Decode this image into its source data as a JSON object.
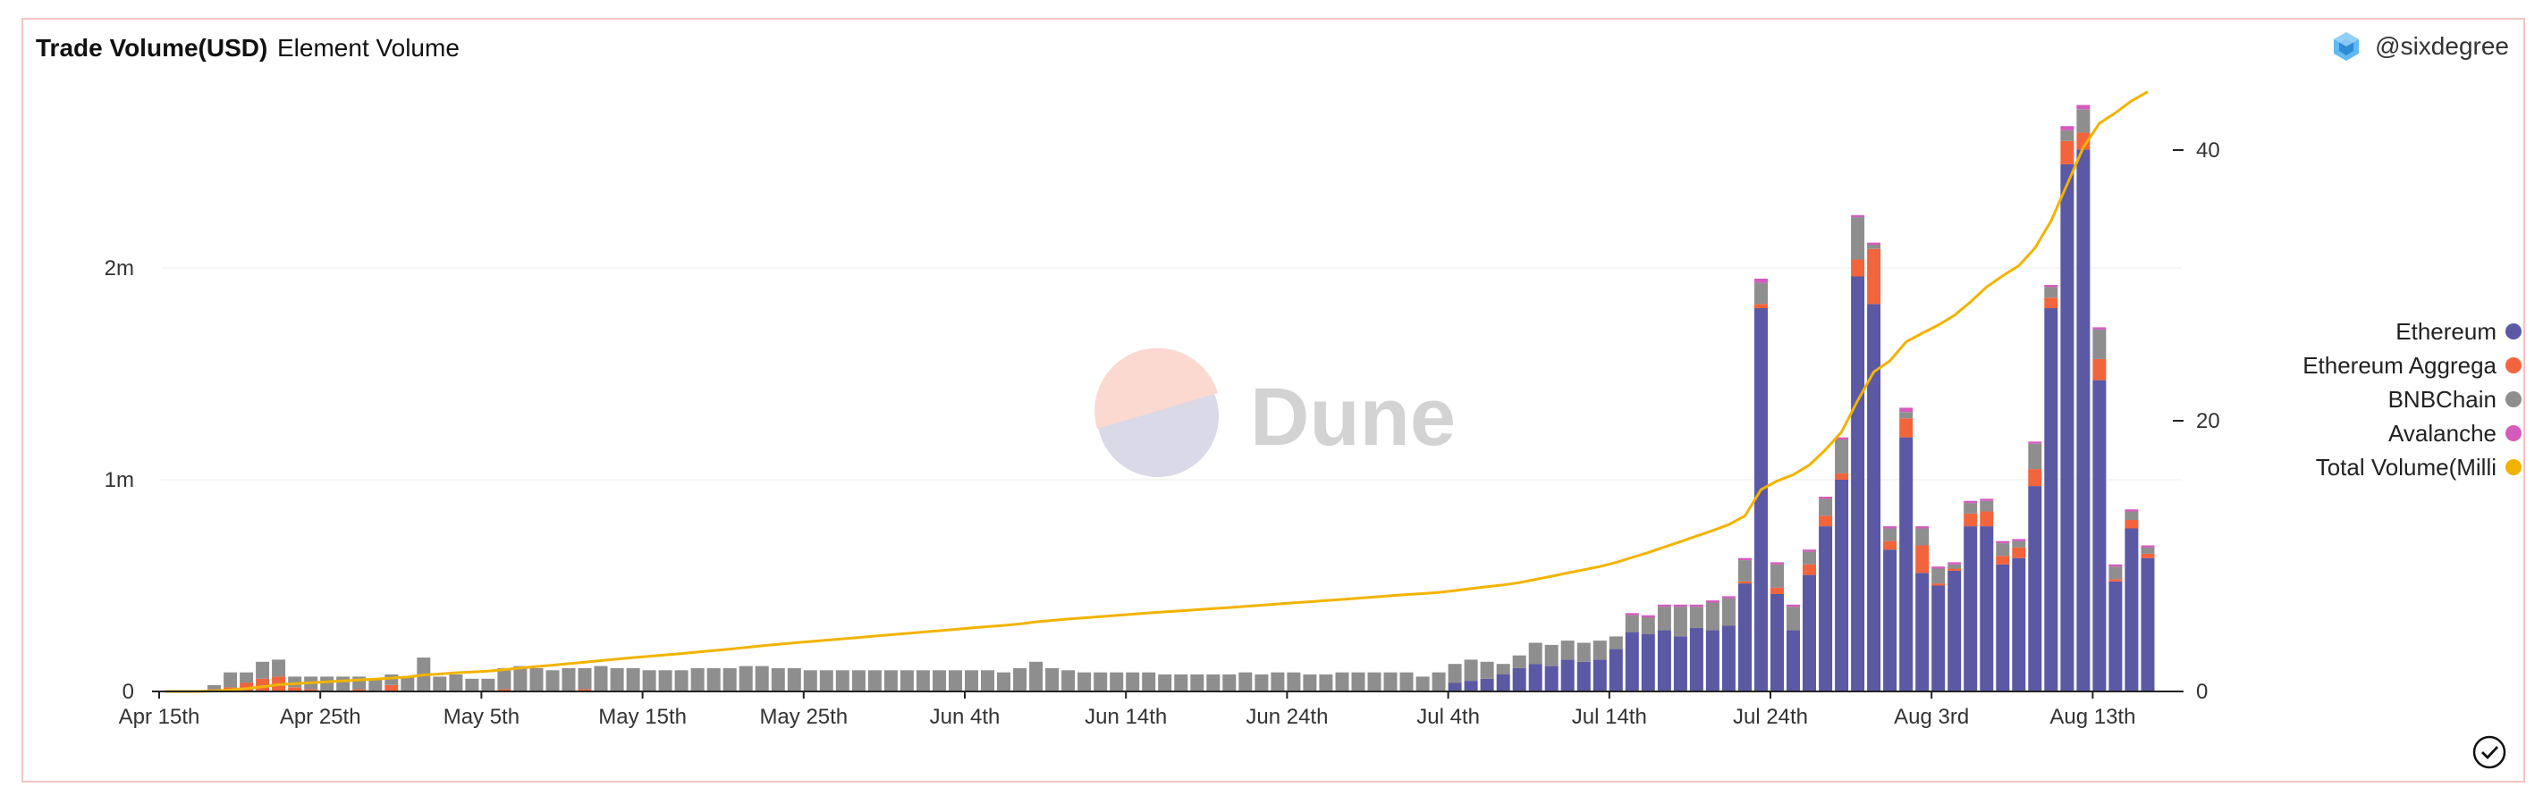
{
  "header": {
    "title": "Trade Volume(USD)",
    "subtitle": "Element Volume",
    "author": "@sixdegree"
  },
  "watermark": {
    "text": "Dune"
  },
  "colors": {
    "ethereum": "#5b58a4",
    "ethereum_aggregator": "#f2643c",
    "bnbchain": "#8e8e8e",
    "avalanche": "#d55bbd",
    "total": "#f2b300"
  },
  "legend": [
    {
      "label": "Ethereum",
      "color": "#5b58a4"
    },
    {
      "label": "Ethereum Aggrega",
      "color": "#f2643c"
    },
    {
      "label": "BNBChain",
      "color": "#8e8e8e"
    },
    {
      "label": "Avalanche",
      "color": "#d55bbd"
    },
    {
      "label": "Total Volume(Milli",
      "color": "#f2b300"
    }
  ],
  "chart_data": {
    "type": "bar",
    "stacked": true,
    "x_tick_labels": [
      "Apr 15th",
      "Apr 25th",
      "May 5th",
      "May 15th",
      "May 25th",
      "Jun 4th",
      "Jun 14th",
      "Jun 24th",
      "Jul 4th",
      "Jul 14th",
      "Jul 24th",
      "Aug 3rd",
      "Aug 13th"
    ],
    "y_left": {
      "ticks": [
        0,
        1000000,
        2000000
      ],
      "tick_labels": [
        "0",
        "1m",
        "2m"
      ],
      "ylim": [
        0,
        2850000
      ]
    },
    "y_right": {
      "ticks": [
        0,
        20,
        40
      ],
      "tick_labels": [
        "0",
        "20",
        "40"
      ],
      "ylim": [
        0,
        42.7
      ]
    },
    "grid": true,
    "legend_position": "right",
    "series": [
      {
        "name": "Ethereum",
        "values": [
          0,
          0,
          0,
          0,
          0,
          0,
          0,
          0,
          0,
          0,
          0,
          0,
          0,
          0,
          0,
          0,
          0,
          0,
          0,
          0,
          0,
          0,
          0,
          0,
          0,
          0,
          0,
          0,
          0,
          0,
          0,
          0,
          0,
          0,
          0,
          0,
          0,
          0,
          0,
          0,
          0,
          0,
          0,
          0,
          0,
          0,
          0,
          0,
          0,
          0,
          0,
          0,
          0,
          0,
          0,
          0,
          0,
          0,
          0,
          0,
          0,
          0,
          0,
          0,
          0,
          0,
          0,
          0,
          0,
          0,
          0,
          0,
          0,
          0,
          0,
          0,
          0,
          0,
          0,
          0,
          40000,
          50000,
          60000,
          80000,
          110000,
          130000,
          120000,
          150000,
          140000,
          150000,
          200000,
          280000,
          270000,
          290000,
          260000,
          300000,
          290000,
          310000,
          510000,
          1810000,
          460000,
          290000,
          550000,
          780000,
          1000000,
          1960000,
          1830000,
          670000,
          1200000,
          560000,
          500000,
          570000,
          780000,
          780000,
          600000,
          630000,
          970000,
          1810000,
          2490000,
          2560000,
          1470000,
          520000,
          770000,
          630000
        ]
      },
      {
        "name": "Ethereum Aggregator",
        "values": [
          0,
          0,
          0,
          10000,
          20000,
          40000,
          60000,
          70000,
          20000,
          10000,
          0,
          0,
          10000,
          0,
          30000,
          0,
          0,
          0,
          0,
          0,
          0,
          10000,
          0,
          0,
          0,
          0,
          10000,
          0,
          0,
          0,
          0,
          0,
          0,
          0,
          0,
          0,
          0,
          0,
          0,
          0,
          0,
          0,
          0,
          0,
          0,
          0,
          0,
          0,
          0,
          0,
          0,
          0,
          0,
          0,
          0,
          0,
          0,
          0,
          0,
          0,
          0,
          0,
          0,
          0,
          0,
          0,
          0,
          0,
          0,
          0,
          0,
          0,
          0,
          0,
          0,
          0,
          0,
          0,
          0,
          0,
          0,
          0,
          0,
          0,
          0,
          0,
          0,
          0,
          0,
          0,
          0,
          0,
          0,
          0,
          0,
          0,
          0,
          0,
          10000,
          20000,
          30000,
          0,
          50000,
          50000,
          30000,
          80000,
          260000,
          40000,
          90000,
          130000,
          10000,
          10000,
          60000,
          70000,
          40000,
          50000,
          80000,
          50000,
          110000,
          80000,
          100000,
          10000,
          40000,
          20000
        ]
      },
      {
        "name": "BNBChain",
        "values": [
          0,
          0,
          0,
          20000,
          70000,
          50000,
          80000,
          80000,
          50000,
          60000,
          70000,
          70000,
          60000,
          60000,
          50000,
          70000,
          160000,
          70000,
          80000,
          60000,
          60000,
          100000,
          120000,
          110000,
          100000,
          110000,
          100000,
          120000,
          110000,
          110000,
          100000,
          100000,
          100000,
          110000,
          110000,
          110000,
          120000,
          120000,
          110000,
          110000,
          100000,
          100000,
          100000,
          100000,
          100000,
          100000,
          100000,
          100000,
          100000,
          100000,
          100000,
          100000,
          90000,
          110000,
          140000,
          110000,
          100000,
          90000,
          90000,
          90000,
          90000,
          90000,
          80000,
          80000,
          80000,
          80000,
          80000,
          90000,
          80000,
          90000,
          90000,
          80000,
          80000,
          90000,
          90000,
          90000,
          90000,
          90000,
          70000,
          90000,
          90000,
          100000,
          80000,
          50000,
          60000,
          100000,
          100000,
          90000,
          90000,
          90000,
          60000,
          80000,
          80000,
          110000,
          140000,
          100000,
          130000,
          130000,
          100000,
          100000,
          110000,
          110000,
          60000,
          80000,
          160000,
          200000,
          20000,
          60000,
          30000,
          80000,
          70000,
          20000,
          50000,
          50000,
          60000,
          30000,
          120000,
          50000,
          50000,
          110000,
          140000,
          60000,
          40000,
          30000
        ]
      },
      {
        "name": "Avalanche",
        "values": [
          0,
          0,
          0,
          0,
          0,
          0,
          0,
          0,
          0,
          0,
          0,
          0,
          0,
          0,
          0,
          0,
          0,
          0,
          0,
          0,
          0,
          0,
          0,
          0,
          0,
          0,
          0,
          0,
          0,
          0,
          0,
          0,
          0,
          0,
          0,
          0,
          0,
          0,
          0,
          0,
          0,
          0,
          0,
          0,
          0,
          0,
          0,
          0,
          0,
          0,
          0,
          0,
          0,
          0,
          0,
          0,
          0,
          0,
          0,
          0,
          0,
          0,
          0,
          0,
          0,
          0,
          0,
          0,
          0,
          0,
          0,
          0,
          0,
          0,
          0,
          0,
          0,
          0,
          0,
          0,
          0,
          0,
          0,
          0,
          0,
          0,
          0,
          0,
          0,
          0,
          0,
          10000,
          10000,
          10000,
          10000,
          10000,
          10000,
          10000,
          10000,
          20000,
          10000,
          10000,
          10000,
          10000,
          10000,
          10000,
          10000,
          10000,
          20000,
          10000,
          10000,
          10000,
          10000,
          10000,
          10000,
          10000,
          10000,
          10000,
          20000,
          20000,
          10000,
          10000,
          10000,
          10000
        ]
      },
      {
        "name": "Total Volume(Million)",
        "type": "line",
        "axis": "right",
        "values": [
          0,
          0,
          0,
          0.03,
          0.12,
          0.21,
          0.35,
          0.5,
          0.57,
          0.64,
          0.71,
          0.78,
          0.85,
          0.91,
          0.99,
          1.06,
          1.22,
          1.29,
          1.38,
          1.44,
          1.5,
          1.61,
          1.73,
          1.84,
          1.94,
          2.05,
          2.16,
          2.28,
          2.39,
          2.5,
          2.6,
          2.7,
          2.8,
          2.91,
          3.02,
          3.13,
          3.25,
          3.37,
          3.48,
          3.59,
          3.69,
          3.79,
          3.89,
          3.99,
          4.09,
          4.19,
          4.29,
          4.39,
          4.49,
          4.59,
          4.69,
          4.79,
          4.88,
          4.99,
          5.14,
          5.25,
          5.35,
          5.44,
          5.53,
          5.62,
          5.71,
          5.8,
          5.88,
          5.96,
          6.04,
          6.12,
          6.2,
          6.29,
          6.37,
          6.46,
          6.55,
          6.63,
          6.71,
          6.8,
          6.89,
          6.98,
          7.07,
          7.16,
          7.23,
          7.32,
          7.45,
          7.6,
          7.74,
          7.87,
          8.04,
          8.28,
          8.51,
          8.76,
          8.99,
          9.23,
          9.53,
          9.9,
          10.26,
          10.67,
          11.07,
          11.48,
          11.89,
          12.33,
          12.97,
          14.92,
          15.55,
          16.01,
          16.73,
          17.86,
          19.18,
          21.5,
          23.61,
          24.42,
          25.83,
          26.47,
          27.07,
          27.79,
          28.78,
          29.89,
          30.71,
          31.46,
          32.76,
          34.76,
          37.48,
          40.2,
          41.98,
          42.75,
          43.64,
          44.31
        ]
      }
    ]
  }
}
